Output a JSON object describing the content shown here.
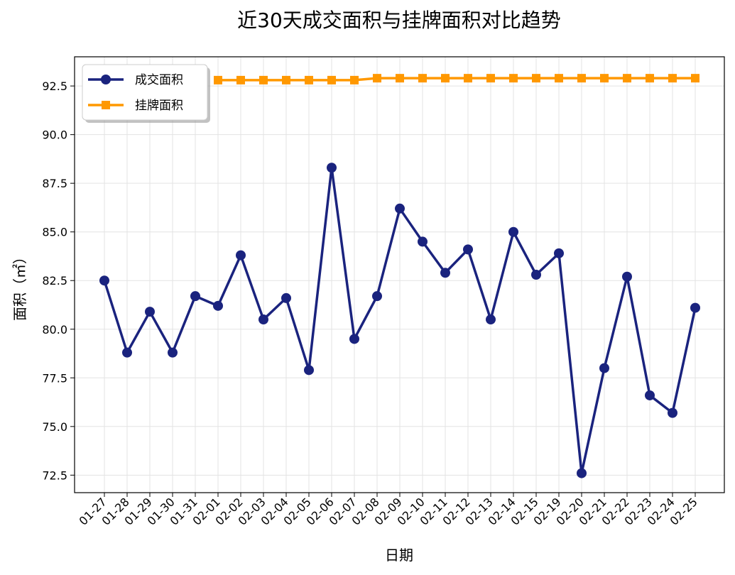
{
  "chart_data": {
    "type": "line",
    "title": "近30天成交面积与挂牌面积对比趋势",
    "xlabel": "日期",
    "ylabel": "面积（㎡）",
    "categories": [
      "01-27",
      "01-28",
      "01-29",
      "01-30",
      "01-31",
      "02-01",
      "02-02",
      "02-03",
      "02-04",
      "02-05",
      "02-06",
      "02-07",
      "02-08",
      "02-09",
      "02-10",
      "02-11",
      "02-12",
      "02-13",
      "02-14",
      "02-15",
      "02-19",
      "02-20",
      "02-21",
      "02-22",
      "02-23",
      "02-24",
      "02-25"
    ],
    "yticks": [
      "72.5",
      "75.0",
      "77.5",
      "80.0",
      "82.5",
      "85.0",
      "87.5",
      "90.0",
      "92.5"
    ],
    "ylim": [
      71.6,
      94.0
    ],
    "grid": true,
    "legend_position": "top-left",
    "series": [
      {
        "name": "成交面积",
        "color": "#1a237e",
        "marker": "circle",
        "values": [
          82.5,
          78.8,
          80.9,
          78.8,
          81.7,
          81.2,
          83.8,
          80.5,
          81.6,
          77.9,
          88.3,
          79.5,
          81.7,
          86.2,
          84.5,
          82.9,
          84.1,
          80.5,
          85.0,
          82.8,
          83.9,
          72.6,
          78.0,
          82.7,
          76.6,
          75.7,
          81.1
        ]
      },
      {
        "name": "挂牌面积",
        "color": "#ff9800",
        "marker": "square",
        "values": [
          null,
          null,
          null,
          null,
          null,
          92.8,
          92.8,
          92.8,
          92.8,
          92.8,
          92.8,
          92.8,
          92.9,
          92.9,
          92.9,
          92.9,
          92.9,
          92.9,
          92.9,
          92.9,
          92.9,
          92.9,
          92.9,
          92.9,
          92.9,
          92.9,
          92.9
        ]
      }
    ]
  }
}
